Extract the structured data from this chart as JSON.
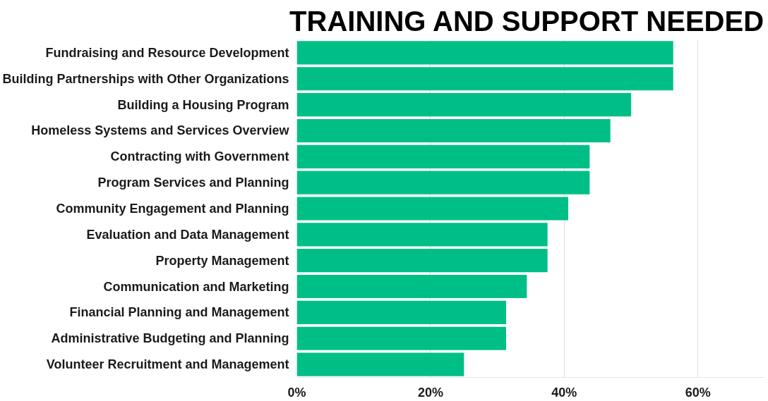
{
  "chart_data": {
    "type": "bar",
    "orientation": "horizontal",
    "title": "TRAINING AND SUPPORT NEEDED",
    "categories": [
      "Fundraising and Resource Development",
      "Building Partnerships with Other Organizations",
      "Building a Housing Program",
      "Homeless Systems and Services Overview",
      "Contracting with Government",
      "Program Services and Planning",
      "Community Engagement and Planning",
      "Evaluation and Data Management",
      "Property Management",
      "Communication and Marketing",
      "Financial Planning and Management",
      "Administrative Budgeting and Planning",
      "Volunteer Recruitment and Management"
    ],
    "values": [
      56.3,
      56.3,
      50,
      46.9,
      43.8,
      43.8,
      40.6,
      37.5,
      37.5,
      34.4,
      31.3,
      31.3,
      25
    ],
    "color": "#00bf86",
    "xlim": [
      0,
      70
    ],
    "xticks": [
      {
        "value": 0,
        "label": "0%"
      },
      {
        "value": 20,
        "label": "20%"
      },
      {
        "value": 40,
        "label": "40%"
      },
      {
        "value": 60,
        "label": "60%"
      }
    ],
    "grid": "x"
  }
}
